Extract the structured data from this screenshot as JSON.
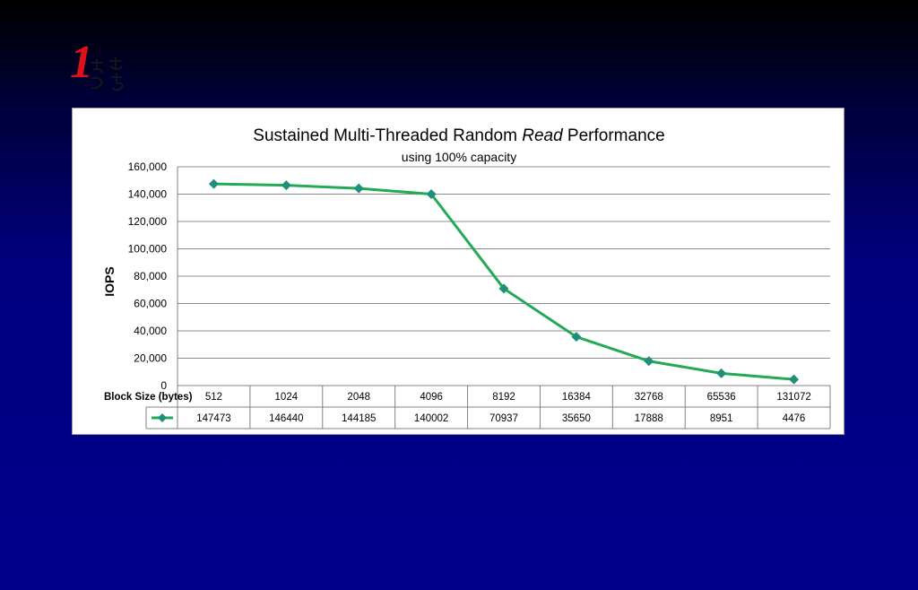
{
  "logo": {
    "numeral": "1",
    "glyphs": "ちオ\nうさ"
  },
  "chart_data": {
    "type": "line",
    "title_prefix": "Sustained Multi-Threaded Random ",
    "title_emphasis": "Read",
    "title_suffix": " Performance",
    "subtitle": "using 100% capacity",
    "xlabel": "Block Size (bytes)",
    "ylabel": "IOPS",
    "ylim": [
      0,
      160000
    ],
    "yticks": [
      "0",
      "20,000",
      "40,000",
      "60,000",
      "80,000",
      "100,000",
      "120,000",
      "140,000",
      "160,000"
    ],
    "grid": true,
    "data_table": true,
    "categories": [
      "512",
      "1024",
      "2048",
      "4096",
      "8192",
      "16384",
      "32768",
      "65536",
      "131072"
    ],
    "series": [
      {
        "color": "#22aa55",
        "marker": "diamond",
        "marker_color": "#1f8f78",
        "values": [
          147473,
          146440,
          144185,
          140002,
          70937,
          35650,
          17888,
          8951,
          4476
        ]
      }
    ]
  }
}
